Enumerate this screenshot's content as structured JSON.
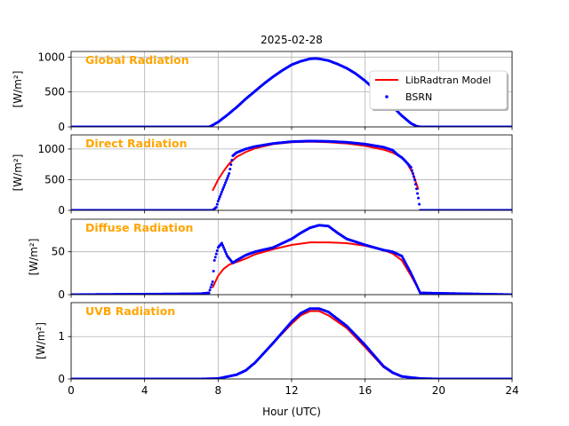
{
  "figure": {
    "title": "2025-02-28",
    "xlabel": "Hour (UTC)",
    "xlim": [
      0,
      24
    ],
    "xticks": [
      0,
      4,
      8,
      12,
      16,
      20,
      24
    ],
    "legend": {
      "placement": "top-right of first panel",
      "model_label": "LibRadtran Model",
      "obs_label": "BSRN"
    },
    "colors": {
      "model": "#ff0000",
      "obs": "#0000ff",
      "panel_title": "#ffa500",
      "grid": "#b0b0b0"
    }
  },
  "chart_data": [
    {
      "type": "line",
      "title": "Global Radiation",
      "ylabel": "[W/m²]",
      "ylim": [
        0,
        1080
      ],
      "yticks": [
        0,
        500,
        1000
      ],
      "series": [
        {
          "name": "LibRadtran Model",
          "x": [
            7.6,
            8,
            8.5,
            9,
            9.5,
            10,
            10.5,
            11,
            11.5,
            12,
            12.5,
            13,
            13.3,
            13.5,
            14,
            14.5,
            15,
            15.5,
            16,
            16.5,
            17,
            17.5,
            18,
            18.5,
            18.8
          ],
          "y": [
            10,
            70,
            170,
            280,
            400,
            510,
            620,
            720,
            810,
            890,
            940,
            975,
            980,
            975,
            950,
            900,
            840,
            760,
            660,
            540,
            420,
            290,
            160,
            50,
            10
          ]
        },
        {
          "name": "BSRN",
          "x": [
            0,
            7.5,
            7.6,
            8,
            8.5,
            9,
            9.5,
            10,
            10.5,
            11,
            11.5,
            12,
            12.5,
            13,
            13.3,
            13.5,
            14,
            14.5,
            15,
            15.5,
            16,
            16.5,
            17,
            17.5,
            18,
            18.5,
            18.8,
            19,
            24
          ],
          "y": [
            0,
            0,
            10,
            70,
            170,
            280,
            400,
            510,
            620,
            720,
            810,
            890,
            940,
            975,
            980,
            975,
            950,
            900,
            840,
            760,
            660,
            540,
            420,
            290,
            160,
            50,
            10,
            0,
            0
          ]
        }
      ]
    },
    {
      "type": "line",
      "title": "Direct Radiation",
      "ylabel": "[W/m²]",
      "ylim": [
        0,
        1230
      ],
      "yticks": [
        0,
        500,
        1000
      ],
      "series": [
        {
          "name": "LibRadtran Model",
          "x": [
            7.7,
            8,
            8.3,
            8.6,
            9,
            9.5,
            10,
            11,
            12,
            13,
            14,
            15,
            16,
            17,
            17.5,
            18,
            18.3,
            18.6,
            18.9
          ],
          "y": [
            320,
            500,
            640,
            760,
            870,
            950,
            1010,
            1080,
            1110,
            1120,
            1110,
            1090,
            1050,
            990,
            940,
            860,
            760,
            600,
            340
          ]
        },
        {
          "name": "BSRN",
          "x": [
            0,
            7.7,
            7.9,
            8,
            8.2,
            8.4,
            8.6,
            8.8,
            9,
            9.5,
            10,
            11,
            12,
            13,
            14,
            15,
            16,
            17,
            17.5,
            17.8,
            18,
            18.2,
            18.5,
            18.7,
            18.8,
            18.9,
            19,
            24
          ],
          "y": [
            0,
            0,
            50,
            150,
            300,
            450,
            600,
            890,
            940,
            1000,
            1040,
            1090,
            1120,
            1130,
            1125,
            1110,
            1080,
            1030,
            980,
            900,
            860,
            800,
            700,
            500,
            350,
            200,
            0,
            0
          ]
        }
      ]
    },
    {
      "type": "line",
      "title": "Diffuse Radiation",
      "ylabel": "[W/m²]",
      "ylim": [
        0,
        88
      ],
      "yticks": [
        0,
        50
      ],
      "series": [
        {
          "name": "LibRadtran Model",
          "x": [
            7.7,
            8,
            8.3,
            8.6,
            9,
            9.5,
            10,
            11,
            12,
            13,
            14,
            15,
            16,
            17,
            17.5,
            18,
            18.5,
            19
          ],
          "y": [
            8,
            22,
            30,
            35,
            38,
            42,
            47,
            53,
            58,
            61,
            61,
            60,
            57,
            52,
            48,
            40,
            22,
            3
          ]
        },
        {
          "name": "BSRN",
          "x": [
            0,
            7,
            7.5,
            7.7,
            7.8,
            8,
            8.2,
            8.5,
            8.8,
            9,
            9.5,
            10,
            11,
            12,
            12.5,
            13,
            13.5,
            14,
            14.5,
            15,
            16,
            17,
            17.5,
            18,
            18.5,
            19,
            24
          ],
          "y": [
            0,
            1,
            2,
            15,
            40,
            55,
            60,
            45,
            37,
            40,
            46,
            50,
            55,
            65,
            72,
            78,
            81,
            80,
            72,
            65,
            58,
            52,
            50,
            45,
            25,
            2,
            0
          ]
        }
      ]
    },
    {
      "type": "line",
      "title": "UVB Radiation",
      "ylabel": "[W/m²]",
      "ylim": [
        0,
        1.8
      ],
      "yticks": [
        0,
        1
      ],
      "series": [
        {
          "name": "LibRadtran Model",
          "x": [
            7,
            8,
            9,
            9.5,
            10,
            11,
            12,
            12.5,
            13,
            13.5,
            14,
            15,
            16,
            17,
            17.5,
            18,
            19,
            20
          ],
          "y": [
            0,
            0.01,
            0.1,
            0.2,
            0.38,
            0.85,
            1.3,
            1.5,
            1.6,
            1.6,
            1.5,
            1.2,
            0.75,
            0.28,
            0.14,
            0.05,
            0.01,
            0
          ]
        },
        {
          "name": "BSRN",
          "x": [
            0,
            7,
            8,
            9,
            9.5,
            10,
            11,
            12,
            12.5,
            13,
            13.5,
            14,
            15,
            16,
            17,
            17.5,
            18,
            19,
            20,
            24
          ],
          "y": [
            0,
            0,
            0.01,
            0.1,
            0.2,
            0.38,
            0.85,
            1.35,
            1.55,
            1.66,
            1.66,
            1.58,
            1.25,
            0.8,
            0.3,
            0.15,
            0.06,
            0.01,
            0,
            0
          ]
        }
      ]
    }
  ]
}
